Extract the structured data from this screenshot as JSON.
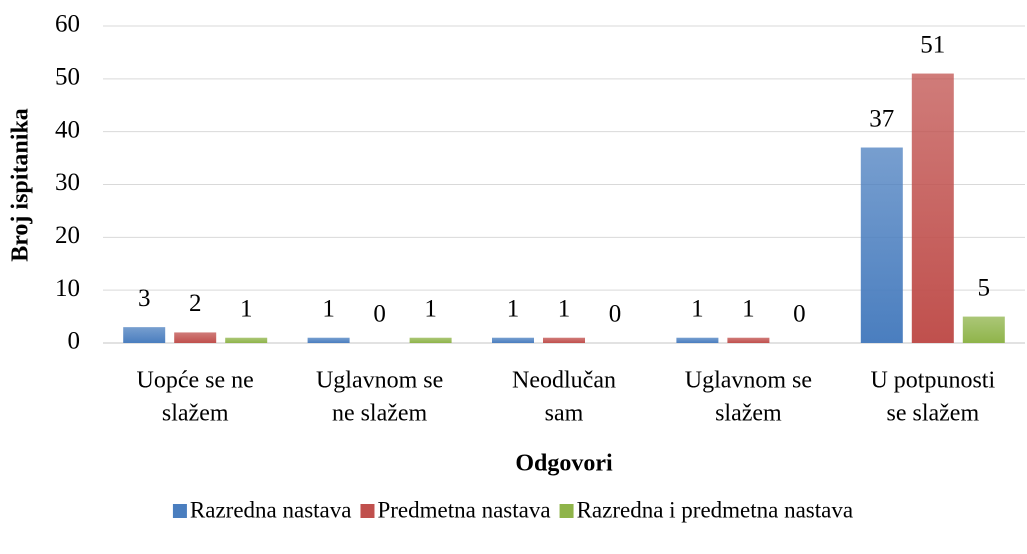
{
  "chart_data": {
    "type": "bar",
    "categories": [
      [
        "Uopće se ne",
        "slažem"
      ],
      [
        "Uglavnom se",
        "ne slažem"
      ],
      [
        "Neodlučan",
        "sam"
      ],
      [
        "Uglavnom se",
        "slažem"
      ],
      [
        "U potpunosti",
        "se slažem"
      ]
    ],
    "series": [
      {
        "name": "Razredna nastava",
        "color": "#4a7ebf",
        "values": [
          3,
          1,
          1,
          1,
          37
        ]
      },
      {
        "name": "Predmetna nastava",
        "color": "#c0504d",
        "values": [
          2,
          0,
          1,
          1,
          51
        ]
      },
      {
        "name": "Razredna i predmetna nastava",
        "color": "#8fb44a",
        "values": [
          1,
          1,
          0,
          0,
          5
        ]
      }
    ],
    "ylim": [
      0,
      60
    ],
    "yticks": [
      0,
      10,
      20,
      30,
      40,
      50,
      60
    ],
    "grid": true,
    "xlabel": "Odgovori",
    "ylabel": "Broj ispitanika",
    "legend": "bottom"
  }
}
